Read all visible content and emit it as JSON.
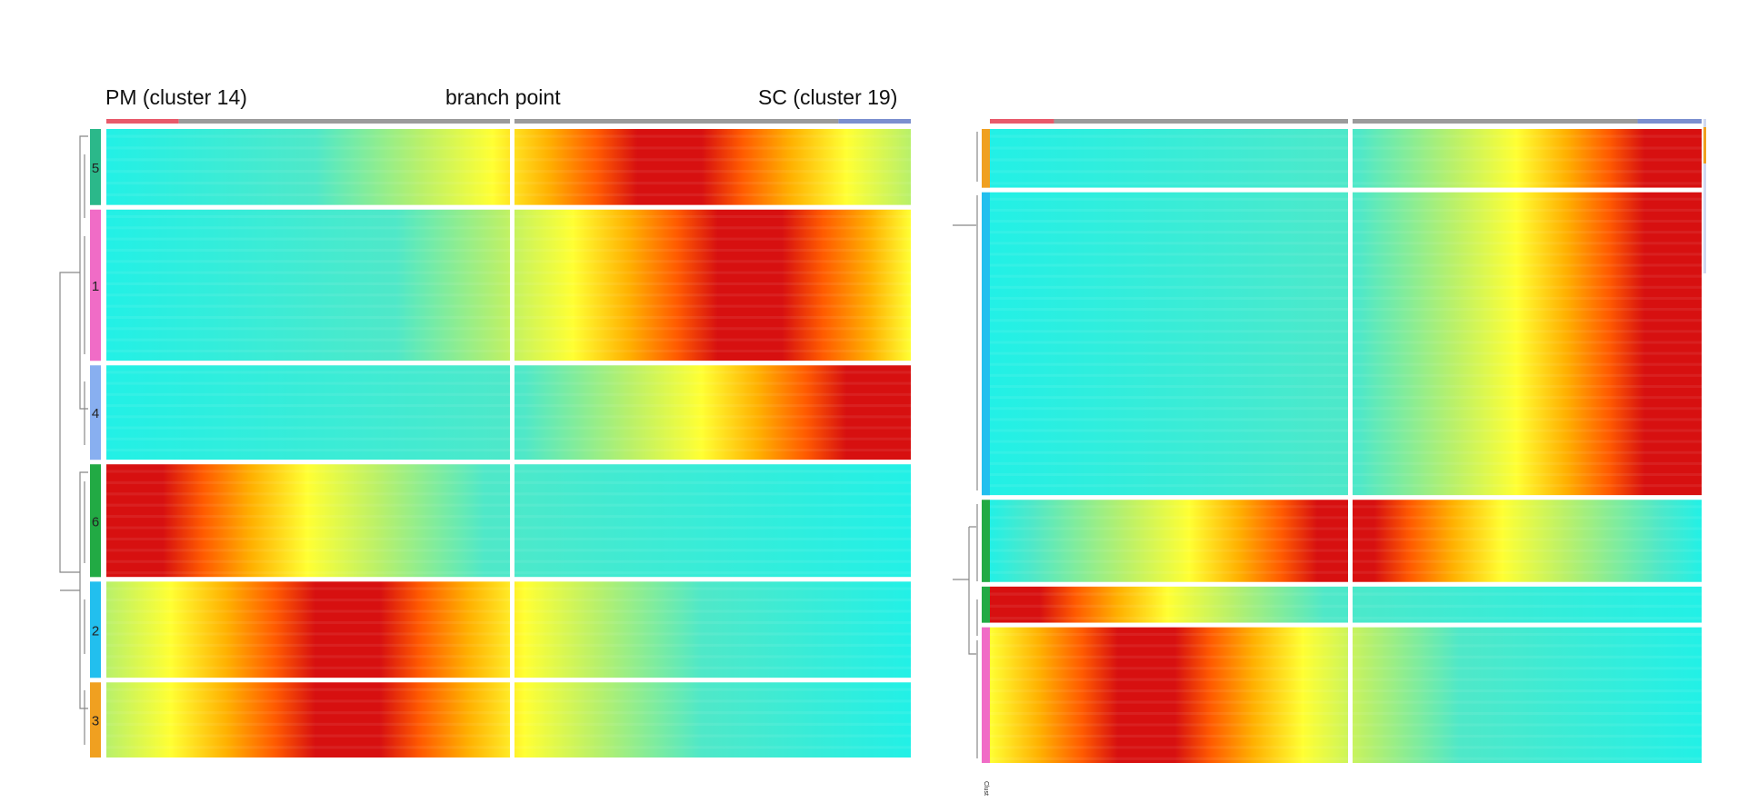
{
  "figure": {
    "left_panel": {
      "labels": {
        "start": "PM (cluster 14)",
        "middle": "branch point",
        "end": "SC (cluster 19)"
      }
    }
  },
  "chart_data": [
    {
      "type": "heatmap",
      "title": "",
      "xlabel": "",
      "ylabel": "",
      "top_annotation": {
        "labels": [
          "PM (cluster 14)",
          "branch point",
          "SC (cluster 19)"
        ],
        "colors": {
          "start": "#e85a6a",
          "middle": "#9b9b9b",
          "end": "#7b8fcf"
        }
      },
      "branches": [
        "left of branch point",
        "right of branch point"
      ],
      "row_clusters": [
        {
          "label": "5",
          "color": "#2bb88a",
          "peak": "mid-right"
        },
        {
          "label": "1",
          "color": "#f06cc6",
          "peak": "right"
        },
        {
          "label": "4",
          "color": "#88aff0",
          "peak": "far-right"
        },
        {
          "label": "6",
          "color": "#22aa44",
          "peak": "far-left"
        },
        {
          "label": "2",
          "color": "#22bfee",
          "peak": "left-middle"
        },
        {
          "label": "3",
          "color": "#f0a020",
          "peak": "left-middle"
        }
      ],
      "colormap": [
        "#1f3fd6",
        "#2ea8ff",
        "#22f0e6",
        "#4fe8c8",
        "#b8f06a",
        "#ffff33",
        "#ffb000",
        "#ff5a00",
        "#d71010"
      ],
      "dendrogram": true
    },
    {
      "type": "heatmap",
      "title": "",
      "top_annotation": {
        "colors": {
          "start": "#e85a6a",
          "middle": "#9b9b9b",
          "end": "#7b8fcf"
        }
      },
      "row_clusters": [
        {
          "color": "#f0a020",
          "peak": "far-right"
        },
        {
          "color": "#22bfee",
          "peak": "far-right"
        },
        {
          "color": "#22aa44",
          "peak": "middle"
        },
        {
          "color": "#22aa44",
          "peak": "far-left"
        },
        {
          "color": "#f06cc6",
          "peak": "left"
        }
      ],
      "colormap": [
        "#1f3fd6",
        "#2ea8ff",
        "#22f0e6",
        "#4fe8c8",
        "#b8f06a",
        "#ffff33",
        "#ffb000",
        "#ff5a00",
        "#d71010"
      ],
      "dendrogram": true,
      "axis_label_fragment": "Clust"
    }
  ]
}
